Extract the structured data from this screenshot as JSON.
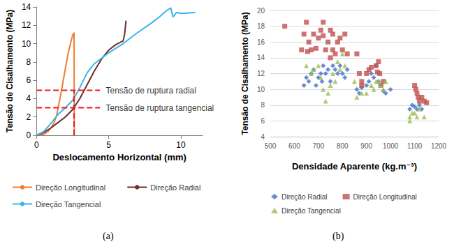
{
  "chart_data": [
    {
      "type": "line",
      "title": "(a)",
      "xlabel": "Deslocamento Horizontal (mm)",
      "ylabel": "Tensão de Cisalhamento (MPa)",
      "xlim": [
        0,
        11.5
      ],
      "xticks": [
        0,
        5,
        10
      ],
      "ylim": [
        0,
        14
      ],
      "yticks": [
        0,
        2,
        4,
        6,
        8,
        10,
        12,
        14
      ],
      "grid": false,
      "legend": "bottom",
      "series": [
        {
          "name": "Direção Longitudinal",
          "color": "#ED7D31",
          "x": [
            0,
            0.5,
            0.8,
            1.0,
            1.2,
            1.4,
            1.6,
            1.8,
            2.0,
            2.2,
            2.4,
            2.5,
            2.6,
            2.62
          ],
          "values": [
            0,
            0.1,
            0.4,
            0.8,
            1.3,
            2.2,
            3.8,
            5.5,
            7.3,
            9.0,
            10.3,
            10.9,
            11.2,
            0
          ]
        },
        {
          "name": "Direção Radial",
          "color": "#6B2D2D",
          "x": [
            0,
            0.5,
            1.0,
            1.5,
            2.0,
            2.5,
            3.0,
            3.5,
            4.0,
            4.5,
            5.0,
            5.5,
            6.0,
            6.1,
            6.2
          ],
          "values": [
            0,
            0.3,
            0.8,
            1.4,
            2.0,
            2.8,
            4.0,
            5.5,
            7.0,
            8.3,
            9.3,
            9.9,
            10.3,
            11.0,
            12.5
          ]
        },
        {
          "name": "Direção Tangencial",
          "color": "#3CB4E6",
          "x": [
            0,
            0.5,
            1.0,
            1.5,
            2.0,
            2.5,
            3.0,
            3.5,
            4.0,
            5.0,
            6.0,
            7.0,
            8.0,
            8.5,
            9.0,
            9.3,
            9.45,
            9.7,
            10.0,
            11.0
          ],
          "values": [
            0,
            0.4,
            1.3,
            2.3,
            3.0,
            3.8,
            5.2,
            6.8,
            7.8,
            9.0,
            10.0,
            11.2,
            12.3,
            12.9,
            13.6,
            13.9,
            12.9,
            13.4,
            13.3,
            13.4
          ]
        }
      ],
      "lines": [
        {
          "x": [
            0,
            4.4
          ],
          "y": [
            4.9,
            4.9
          ],
          "color": "#E8191F",
          "line_style": "dashed"
        },
        {
          "x": [
            0,
            4.4
          ],
          "y": [
            3.0,
            3.0
          ],
          "color": "#E8191F",
          "line_style": "dashed"
        },
        {
          "x": [
            2.6,
            2.6
          ],
          "y": [
            0,
            4.9
          ],
          "color": "#E8191F",
          "line_style": "dashed"
        }
      ],
      "annotations": [
        {
          "text": "Tensão de ruptura radial",
          "x": 4.8,
          "y": 4.9
        },
        {
          "text": "Tensão de ruptura tangencial",
          "x": 4.8,
          "y": 3.0
        }
      ]
    },
    {
      "type": "scatter",
      "title": "(b)",
      "xlabel": "Densidade Aparente (kg.m⁻³)",
      "ylabel": "Tensão de Cisalhamento (MPa)",
      "xlim": [
        500,
        1200
      ],
      "xticks": [
        500,
        600,
        700,
        800,
        900,
        1000,
        1100,
        1200
      ],
      "ylim": [
        4,
        20
      ],
      "yticks": [
        4,
        6,
        8,
        10,
        12,
        14,
        16,
        18,
        20
      ],
      "grid": true,
      "legend": "bottom",
      "series": [
        {
          "name": "Direção Radial",
          "color": "#4472C4",
          "marker": "diamond",
          "x": [
            640,
            650,
            660,
            670,
            680,
            690,
            700,
            710,
            715,
            720,
            730,
            740,
            750,
            760,
            770,
            780,
            790,
            800,
            810,
            820,
            860,
            870,
            880,
            900,
            910,
            920,
            930,
            940,
            950,
            960,
            970,
            980,
            1000,
            1080,
            1090,
            1100,
            1110,
            1120,
            1130
          ],
          "values": [
            10.5,
            11.5,
            11,
            12,
            12.5,
            10.5,
            11.5,
            12,
            11,
            13,
            12,
            12.5,
            11,
            13,
            12.5,
            12,
            13,
            12,
            11.5,
            12.5,
            10,
            9.5,
            10.2,
            10.5,
            11,
            12,
            11.5,
            13,
            11,
            10.5,
            9.8,
            9.5,
            10,
            7.5,
            8,
            7.8,
            7.5,
            8,
            7.5
          ]
        },
        {
          "name": "Direção Longitudinal",
          "color": "#C0504D",
          "marker": "square",
          "x": [
            560,
            630,
            640,
            650,
            655,
            660,
            670,
            680,
            690,
            700,
            710,
            720,
            720,
            730,
            740,
            750,
            750,
            760,
            760,
            770,
            780,
            790,
            800,
            810,
            820,
            860,
            870,
            880,
            880,
            900,
            910,
            920,
            940,
            945,
            950,
            955,
            960,
            970,
            1100,
            1105,
            1110,
            1115,
            1120,
            1130,
            1140,
            1150
          ],
          "values": [
            18,
            15,
            17,
            18.5,
            14.8,
            16,
            15,
            17,
            15.2,
            16.5,
            17.5,
            18.5,
            16.8,
            15,
            16,
            14,
            17.5,
            17,
            15,
            14.5,
            16,
            16.5,
            15,
            17,
            14.5,
            14.5,
            12,
            11,
            10.5,
            12,
            12.5,
            12.8,
            13,
            12.2,
            13.5,
            12,
            10.5,
            11,
            10.5,
            10,
            9.5,
            9,
            8.5,
            9,
            8.5,
            8.3
          ]
        },
        {
          "name": "Direção Tangencial",
          "color": "#9BBB59",
          "marker": "triangle",
          "x": [
            650,
            670,
            680,
            700,
            710,
            720,
            730,
            740,
            750,
            760,
            770,
            780,
            790,
            800,
            810,
            850,
            860,
            880,
            900,
            920,
            930,
            940,
            950,
            960,
            970,
            980,
            1080,
            1080,
            1090,
            1100,
            1110,
            1120,
            1140
          ],
          "values": [
            13,
            12,
            12.5,
            13,
            11.5,
            10,
            8.5,
            9.5,
            10.5,
            12,
            11,
            13.5,
            12.5,
            14.5,
            13,
            11,
            9,
            9.5,
            9.5,
            10.5,
            10,
            11,
            11,
            10.5,
            10,
            11,
            6.5,
            6,
            7,
            7,
            6.5,
            7.5,
            6.5
          ]
        }
      ]
    }
  ]
}
